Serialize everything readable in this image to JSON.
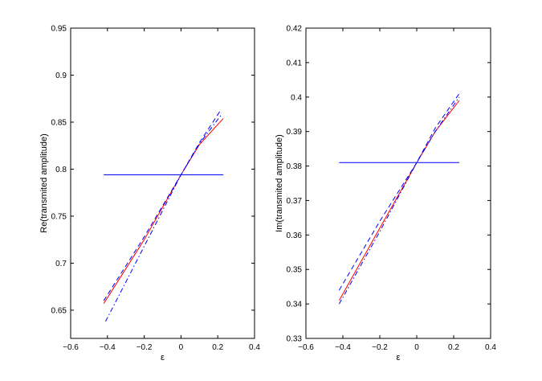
{
  "chart_data": [
    {
      "type": "line",
      "xlabel": "ε",
      "ylabel": "Re(transmited amplitude)",
      "xlim": [
        -0.6,
        0.4
      ],
      "ylim": [
        0.62,
        0.95
      ],
      "xticks": [
        "−0.6",
        "−0.4",
        "−0.2",
        "0",
        "0.2",
        "0.4"
      ],
      "yticks": [
        "0.65",
        "0.7",
        "0.75",
        "0.8",
        "0.85",
        "0.9",
        "0.95"
      ],
      "grid": false,
      "series": [
        {
          "style": "solid",
          "color": "#0000ff",
          "x": [
            -0.42,
            0.23
          ],
          "y": [
            0.794,
            0.794
          ]
        },
        {
          "style": "solid",
          "color": "#ff0000",
          "x": [
            -0.42,
            -0.2,
            0.0,
            0.1,
            0.23
          ],
          "y": [
            0.657,
            0.725,
            0.794,
            0.826,
            0.854
          ]
        },
        {
          "style": "dashed",
          "color": "#0000ff",
          "x": [
            -0.42,
            -0.2,
            0.0,
            0.1,
            0.22
          ],
          "y": [
            0.66,
            0.728,
            0.794,
            0.828,
            0.864
          ]
        },
        {
          "style": "dashdot",
          "color": "#0000ff",
          "x": [
            -0.41,
            -0.2,
            0.0,
            0.1,
            0.22
          ],
          "y": [
            0.638,
            0.718,
            0.794,
            0.827,
            0.858
          ]
        }
      ]
    },
    {
      "type": "line",
      "xlabel": "ε",
      "ylabel": "Im(transmited amplitude)",
      "xlim": [
        -0.6,
        0.4
      ],
      "ylim": [
        0.33,
        0.42
      ],
      "xticks": [
        "−0.6",
        "−0.4",
        "−0.2",
        "0",
        "0.2",
        "0.4"
      ],
      "yticks": [
        "0.33",
        "0.34",
        "0.35",
        "0.36",
        "0.37",
        "0.38",
        "0.39",
        "0.4",
        "0.41",
        "0.42"
      ],
      "grid": false,
      "series": [
        {
          "style": "solid",
          "color": "#0000ff",
          "x": [
            -0.42,
            0.23
          ],
          "y": [
            0.381,
            0.381
          ]
        },
        {
          "style": "solid",
          "color": "#ff0000",
          "x": [
            -0.42,
            -0.2,
            0.0,
            0.1,
            0.23
          ],
          "y": [
            0.341,
            0.362,
            0.381,
            0.39,
            0.399
          ]
        },
        {
          "style": "dashed",
          "color": "#0000ff",
          "x": [
            -0.42,
            -0.2,
            0.0,
            0.1,
            0.23
          ],
          "y": [
            0.344,
            0.364,
            0.381,
            0.391,
            0.401
          ]
        },
        {
          "style": "dashdot",
          "color": "#0000ff",
          "x": [
            -0.42,
            -0.2,
            0.0,
            0.1,
            0.23
          ],
          "y": [
            0.34,
            0.361,
            0.381,
            0.39,
            0.4
          ]
        }
      ]
    }
  ]
}
